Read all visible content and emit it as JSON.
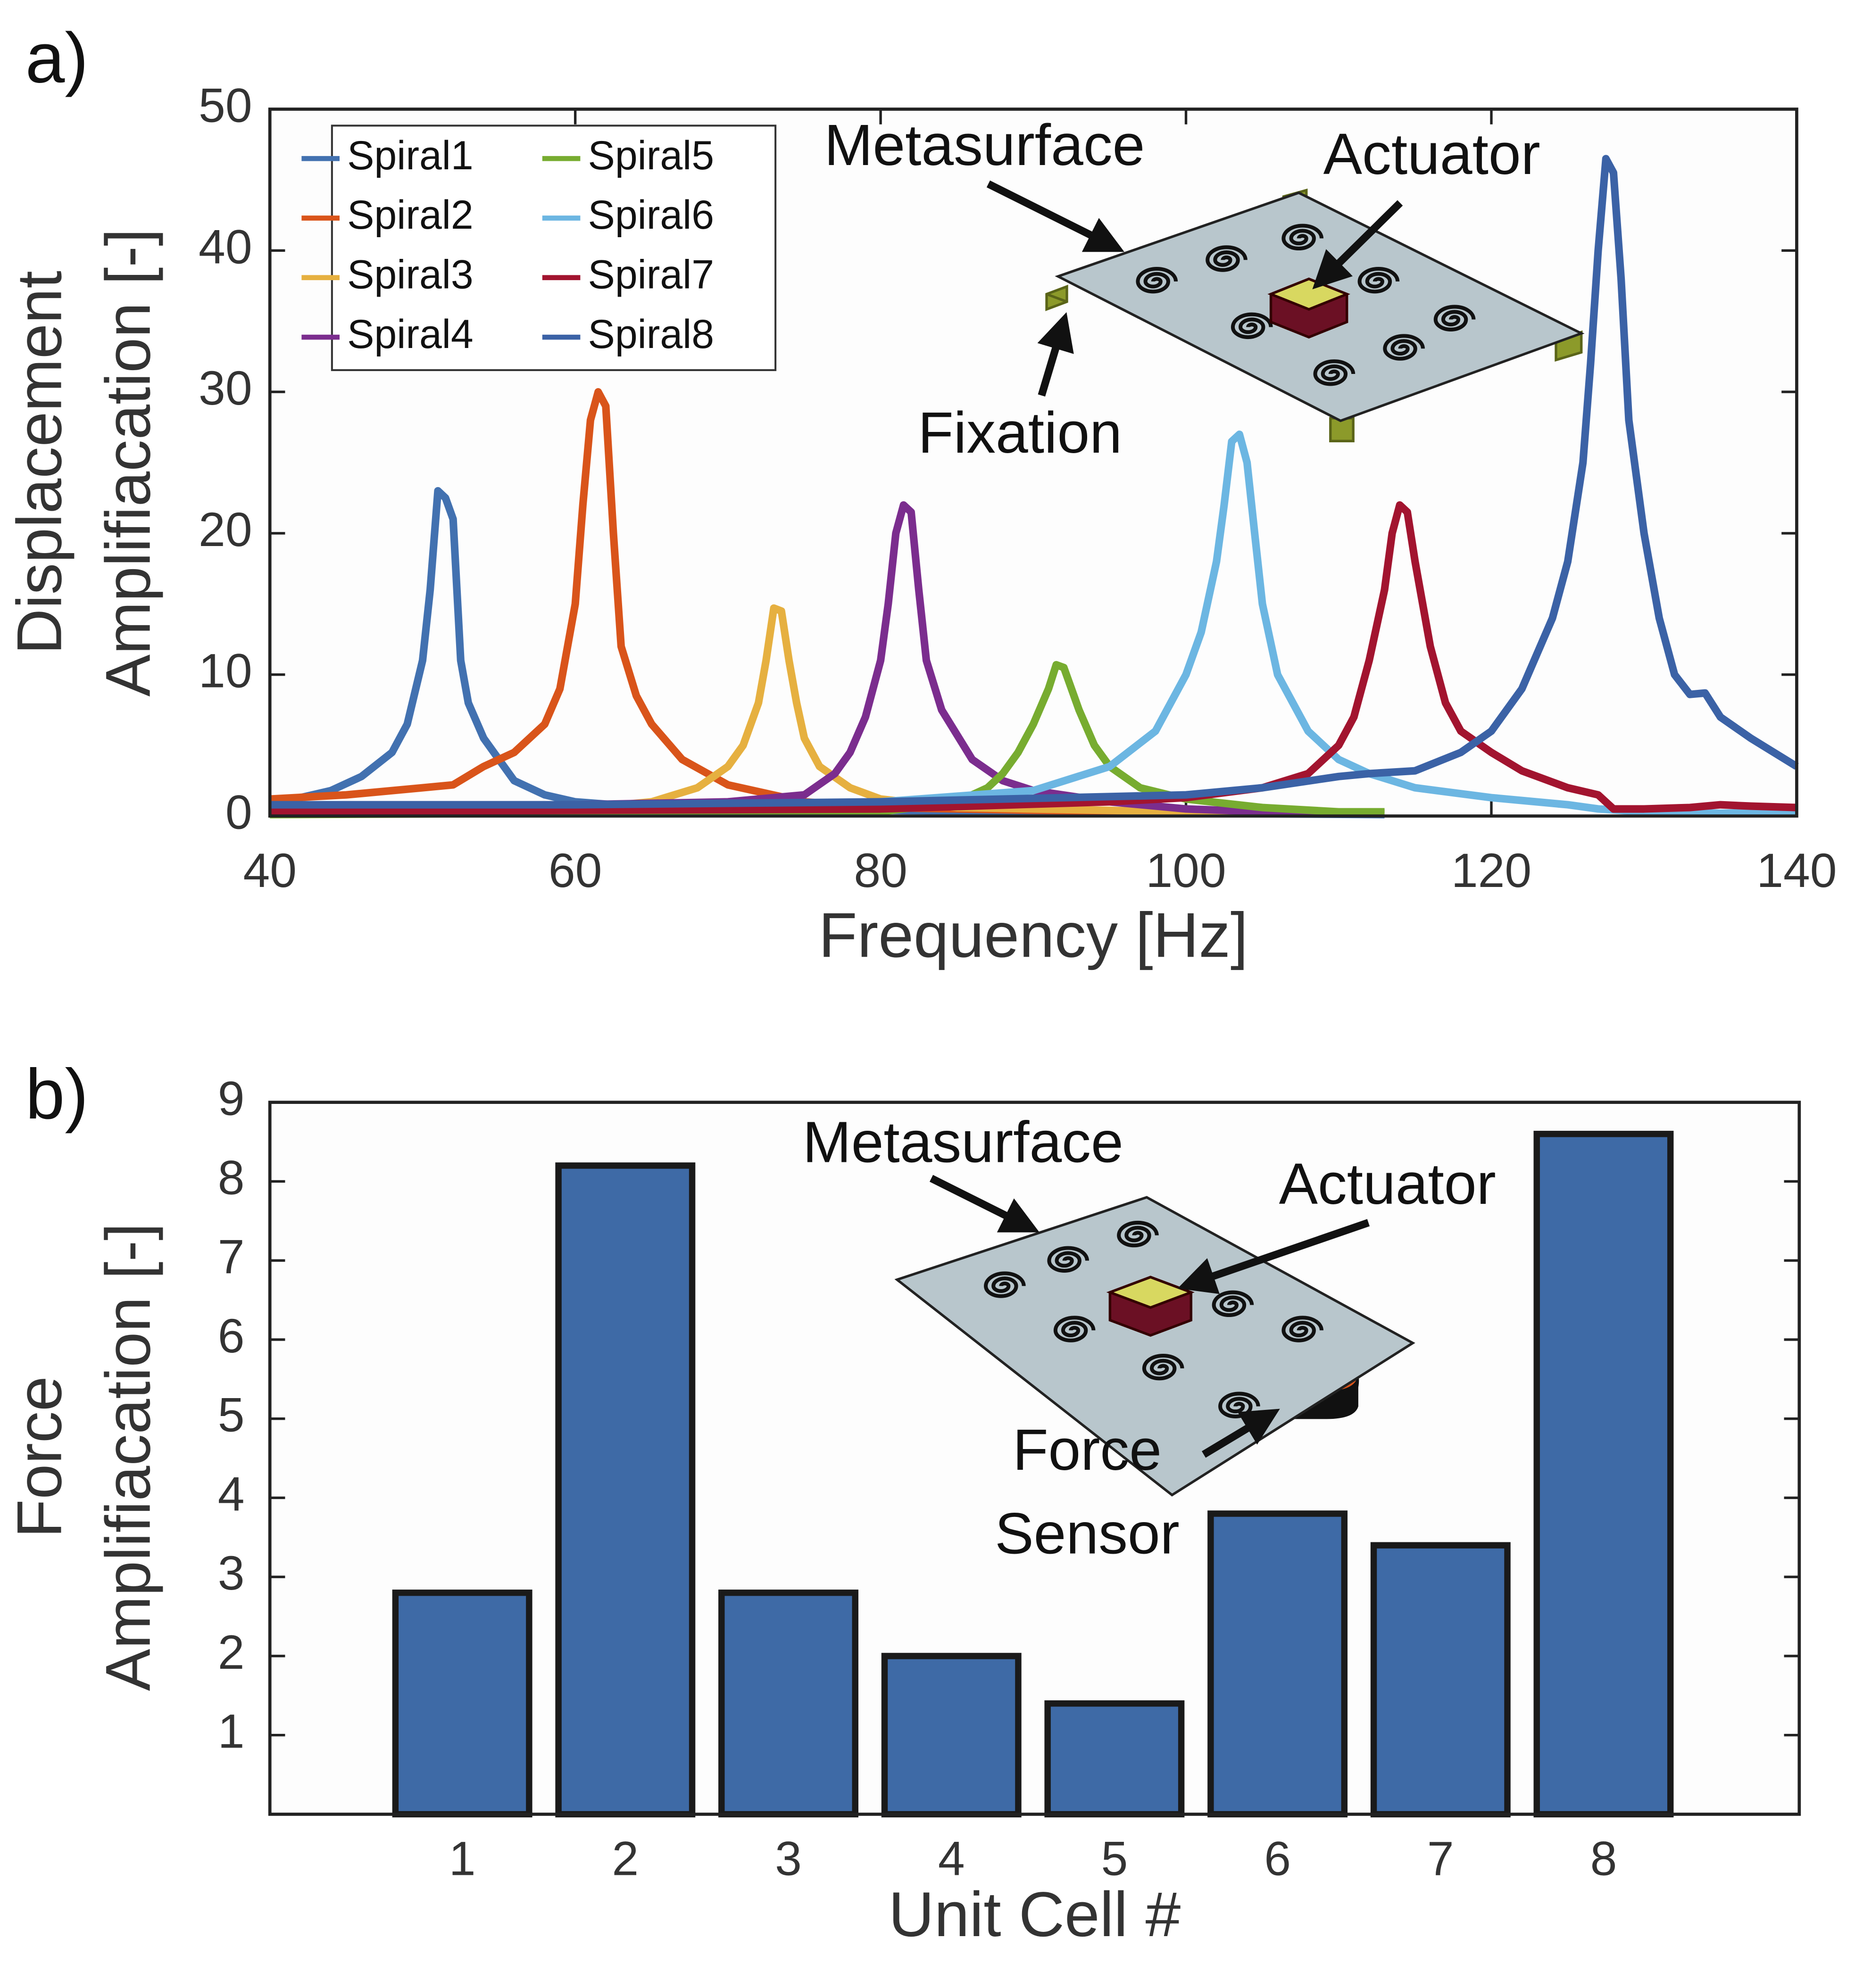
{
  "chart_data": [
    {
      "type": "line",
      "panel_label": "a)",
      "xlabel": "Frequency [Hz]",
      "ylabel": [
        "Displacement",
        "Amplifiacation [-]"
      ],
      "xlim": [
        40,
        140
      ],
      "xticks": [
        40,
        60,
        80,
        100,
        120,
        140
      ],
      "ylim": [
        0,
        50
      ],
      "yticks": [
        0,
        10,
        20,
        30,
        40,
        50
      ],
      "legend": "upper left",
      "annotations": [
        "Metasurface",
        "Actuator",
        "Fixation"
      ],
      "series": [
        {
          "name": "Spiral1",
          "color": "#4271b0",
          "x": [
            40,
            42,
            44,
            46,
            48,
            49,
            50,
            50.5,
            51,
            51.5,
            52,
            52.5,
            53,
            54,
            56,
            58,
            60,
            65,
            70,
            80,
            100,
            113
          ],
          "values": [
            1.0,
            1.3,
            1.8,
            2.8,
            4.5,
            6.5,
            11,
            16,
            23,
            22.5,
            21,
            11,
            8,
            5.5,
            2.5,
            1.5,
            1.0,
            0.6,
            0.5,
            0.4,
            0.2,
            0.1
          ]
        },
        {
          "name": "Spiral2",
          "color": "#d9541a",
          "x": [
            40,
            45,
            50,
            52,
            54,
            56,
            58,
            59,
            60,
            60.5,
            61,
            61.5,
            62,
            62.5,
            63,
            64,
            65,
            67,
            70,
            75,
            80,
            90,
            100,
            113
          ],
          "values": [
            1.2,
            1.5,
            2,
            2.2,
            3.5,
            4.5,
            6.5,
            9,
            15,
            22,
            28,
            30,
            29,
            20,
            12,
            8.5,
            6.5,
            4,
            2.2,
            1.0,
            0.6,
            0.4,
            0.3,
            0.2
          ]
        },
        {
          "name": "Spiral3",
          "color": "#e6b040",
          "x": [
            40,
            60,
            65,
            68,
            70,
            71,
            72,
            72.5,
            73,
            73.5,
            74,
            74.5,
            75,
            76,
            78,
            80,
            85,
            90,
            100,
            113
          ],
          "values": [
            0.2,
            0.5,
            1.0,
            2,
            3.5,
            5,
            8,
            11,
            14.7,
            14.5,
            11,
            8,
            5.5,
            3.5,
            2,
            1.2,
            0.6,
            0.5,
            0.3,
            0.2
          ]
        },
        {
          "name": "Spiral4",
          "color": "#7b2d8e",
          "x": [
            40,
            60,
            70,
            75,
            77,
            78,
            79,
            80,
            80.5,
            81,
            81.5,
            82,
            82.5,
            83,
            84,
            86,
            88,
            90,
            95,
            100,
            105,
            113
          ],
          "values": [
            0.6,
            0.8,
            1.0,
            1.5,
            3,
            4.5,
            7,
            11,
            15,
            20,
            22,
            21.5,
            16,
            11,
            7.5,
            4,
            2.5,
            1.8,
            1.0,
            0.5,
            0.3,
            0.2
          ]
        },
        {
          "name": "Spiral5",
          "color": "#77ac30",
          "x": [
            40,
            80,
            85,
            87,
            88,
            89,
            90,
            91,
            91.5,
            92,
            93,
            94,
            95,
            97,
            100,
            105,
            110,
            113
          ],
          "values": [
            0.1,
            0.3,
            1,
            2,
            3,
            4.5,
            6.5,
            9,
            10.7,
            10.5,
            7.5,
            5,
            3.5,
            2,
            1.2,
            0.6,
            0.3,
            0.3
          ]
        },
        {
          "name": "Spiral6",
          "color": "#6cb6e2",
          "x": [
            40,
            60,
            80,
            90,
            95,
            98,
            100,
            101,
            102,
            102.5,
            103,
            103.5,
            104,
            104.5,
            105,
            106,
            108,
            110,
            112,
            115,
            120,
            125,
            127,
            130,
            135,
            140
          ],
          "values": [
            0.5,
            0.7,
            1.0,
            1.8,
            3.5,
            6,
            10,
            13,
            18,
            22,
            26.5,
            27,
            25,
            20,
            15,
            10,
            6,
            4,
            3,
            2,
            1.3,
            0.8,
            0.5,
            0.3,
            0.2,
            0.3
          ]
        },
        {
          "name": "Spiral7",
          "color": "#a2142f",
          "x": [
            40,
            80,
            95,
            100,
            105,
            108,
            110,
            111,
            112,
            113,
            113.5,
            114,
            114.5,
            115,
            116,
            117,
            118,
            120,
            122,
            125,
            127,
            128,
            130,
            133,
            135,
            137,
            140
          ],
          "values": [
            0.3,
            0.5,
            1,
            1.3,
            2,
            3,
            5,
            7,
            11,
            16,
            20,
            22,
            21.5,
            18,
            12,
            8,
            6,
            4.5,
            3.2,
            2.0,
            1.5,
            0.5,
            0.5,
            0.6,
            0.8,
            0.7,
            0.6
          ]
        },
        {
          "name": "Spiral8",
          "color": "#3b62a6",
          "x": [
            40,
            60,
            80,
            100,
            105,
            110,
            112,
            115,
            118,
            120,
            122,
            124,
            125,
            126,
            126.5,
            127,
            127.5,
            128,
            128.5,
            129,
            130,
            131,
            132,
            133,
            134,
            135,
            137,
            140
          ],
          "values": [
            0.8,
            0.8,
            1.0,
            1.5,
            2,
            2.8,
            3,
            3.2,
            4.5,
            6,
            9,
            14,
            18,
            25,
            32,
            40,
            46.5,
            45.5,
            38,
            28,
            20,
            14,
            10,
            8.6,
            8.7,
            7,
            5.5,
            3.5
          ]
        }
      ]
    },
    {
      "type": "bar",
      "panel_label": "b)",
      "xlabel": "Unit Cell #",
      "ylabel": [
        "Force",
        "Amplifiacation [-]"
      ],
      "categories": [
        "1",
        "2",
        "3",
        "4",
        "5",
        "6",
        "7",
        "8"
      ],
      "values": [
        2.8,
        8.2,
        2.8,
        2.0,
        1.4,
        3.8,
        3.4,
        8.6
      ],
      "color": "#3e6aa6",
      "ylim": [
        0,
        9
      ],
      "yticks": [
        1,
        2,
        3,
        4,
        5,
        6,
        7,
        8,
        9
      ],
      "annotations": [
        "Metasurface",
        "Actuator",
        "Force",
        "Sensor"
      ]
    }
  ]
}
